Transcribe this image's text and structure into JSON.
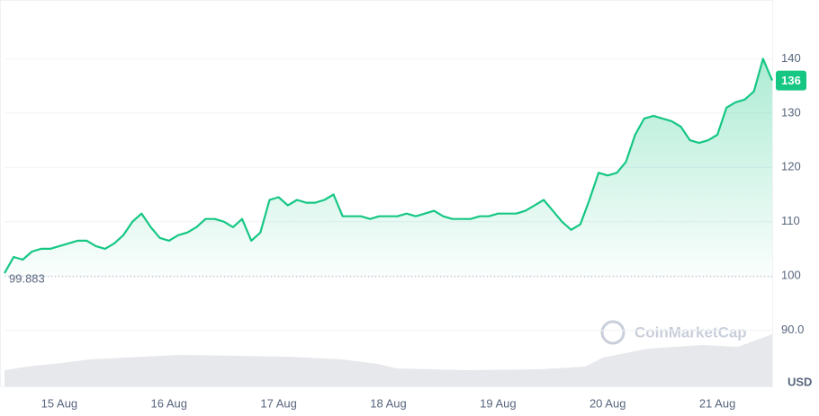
{
  "chart_data": {
    "type": "line",
    "categories": [
      null,
      null,
      null,
      null,
      null,
      null,
      "15 Aug",
      null,
      null,
      null,
      null,
      null,
      null,
      null,
      null,
      null,
      null,
      null,
      "16 Aug",
      null,
      null,
      null,
      null,
      null,
      null,
      null,
      null,
      null,
      null,
      null,
      "17 Aug",
      null,
      null,
      null,
      null,
      null,
      null,
      null,
      null,
      null,
      null,
      null,
      "18 Aug",
      null,
      null,
      null,
      null,
      null,
      null,
      null,
      null,
      null,
      null,
      null,
      "19 Aug",
      null,
      null,
      null,
      null,
      null,
      null,
      null,
      null,
      null,
      null,
      null,
      "20 Aug",
      null,
      null,
      null,
      null,
      null,
      null,
      null,
      null,
      null,
      null,
      null,
      "21 Aug",
      null,
      null,
      null,
      null,
      null,
      null
    ],
    "values": [
      100.5,
      103.5,
      103,
      104.5,
      105,
      105,
      105.5,
      106,
      106.5,
      106.5,
      105.5,
      105,
      106,
      107.5,
      110,
      111.5,
      109,
      107,
      106.5,
      107.5,
      108,
      109,
      110.5,
      110.5,
      110,
      109,
      110.5,
      106.5,
      108,
      114,
      114.5,
      113,
      114,
      113.5,
      113.5,
      114,
      115,
      111,
      111,
      111,
      110.5,
      111,
      111,
      111,
      111.5,
      111,
      111.5,
      112,
      111,
      110.5,
      110.5,
      110.5,
      111,
      111,
      111.5,
      111.5,
      111.5,
      112,
      113,
      114,
      112,
      110,
      108.5,
      109.5,
      114,
      119,
      118.5,
      119,
      121,
      126,
      129,
      129.5,
      129,
      128.5,
      127.5,
      125,
      124.5,
      125,
      126,
      131,
      132,
      132.5,
      134,
      140,
      136
    ],
    "color": "#16c784",
    "ylim": [
      80,
      150
    ],
    "yticks": [
      {
        "value": 90,
        "label": "90.0"
      },
      100,
      110,
      120,
      130,
      140
    ],
    "grid": true,
    "baseline": 99.883,
    "y_axis_label": "USD",
    "watermark": "CoinMarketCap"
  }
}
